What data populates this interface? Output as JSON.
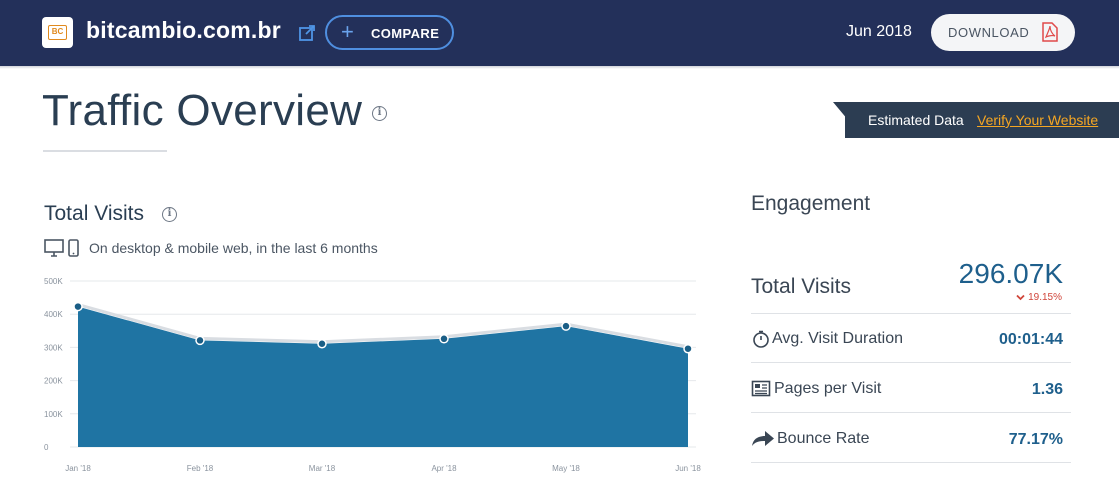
{
  "header": {
    "site_name": "bitcambio.com.br",
    "logo_text": "BC",
    "compare_label": "COMPARE",
    "date": "Jun 2018",
    "download_label": "DOWNLOAD"
  },
  "page": {
    "title": "Traffic Overview",
    "estimated_label": "Estimated Data",
    "verify_link": "Verify Your Website"
  },
  "total_visits": {
    "title": "Total Visits",
    "subtitle": "On desktop & mobile web, in the last 6 months"
  },
  "chart_data": {
    "type": "area",
    "categories": [
      "Jan '18",
      "Feb '18",
      "Mar '18",
      "Apr '18",
      "May '18",
      "Jun '18"
    ],
    "values": [
      423000,
      321000,
      311000,
      326000,
      364000,
      296070
    ],
    "y_ticks": [
      "0",
      "100K",
      "200K",
      "300K",
      "400K",
      "500K"
    ],
    "ylim": [
      0,
      500000
    ],
    "grid": true,
    "fill_color": "#1f74a3",
    "point_color": "#1a5e86"
  },
  "engagement": {
    "title": "Engagement",
    "total_visits_label": "Total Visits",
    "total_visits_value": "296.07K",
    "total_visits_change": "19.15%",
    "rows": [
      {
        "icon": "stopwatch-icon",
        "label": "Avg. Visit Duration",
        "value": "00:01:44"
      },
      {
        "icon": "pages-icon",
        "label": "Pages per Visit",
        "value": "1.36"
      },
      {
        "icon": "bounce-arrow-icon",
        "label": "Bounce Rate",
        "value": "77.17%"
      }
    ]
  },
  "colors": {
    "header_bg": "#23305a",
    "accent_blue": "#1e5f8c",
    "orange_link": "#f5a623",
    "negative_red": "#d0453a"
  }
}
